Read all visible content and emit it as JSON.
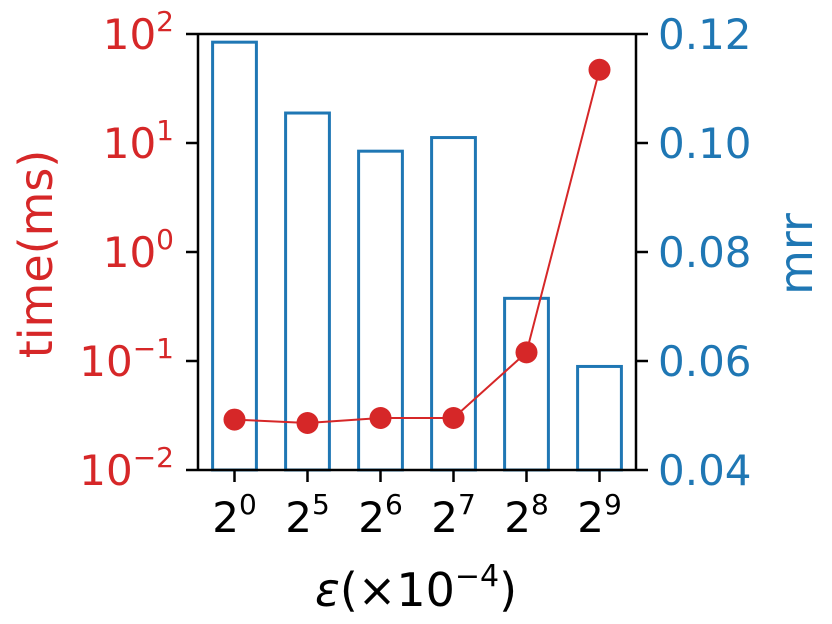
{
  "chart_data": {
    "type": "bar",
    "categories": [
      {
        "base": "2",
        "exp": "0"
      },
      {
        "base": "2",
        "exp": "5"
      },
      {
        "base": "2",
        "exp": "6"
      },
      {
        "base": "2",
        "exp": "7"
      },
      {
        "base": "2",
        "exp": "8"
      },
      {
        "base": "2",
        "exp": "9"
      }
    ],
    "series": [
      {
        "type": "line",
        "axis": "left",
        "values": [
          0.029,
          0.027,
          0.03,
          0.03,
          0.12,
          47.0
        ],
        "color": "#d62728"
      },
      {
        "type": "bar",
        "axis": "right",
        "values": [
          0.1185,
          0.1055,
          0.0985,
          0.101,
          0.0715,
          0.059
        ],
        "color": "#1f77b4",
        "fill": "none"
      }
    ],
    "xlabel": {
      "symbol": "ε",
      "open": "(×10",
      "exp": "−4",
      "close": ")"
    },
    "ylabel_left": "time(ms)",
    "ylabel_right": "mrr",
    "left_axis": {
      "scale": "log",
      "ylim": [
        0.01,
        100
      ],
      "ticks": [
        {
          "value": 0.01,
          "base": "10",
          "exp": "−2"
        },
        {
          "value": 0.1,
          "base": "10",
          "exp": "−1"
        },
        {
          "value": 1,
          "base": "10",
          "exp": "0"
        },
        {
          "value": 10,
          "base": "10",
          "exp": "1"
        },
        {
          "value": 100,
          "base": "10",
          "exp": "2"
        }
      ],
      "color": "#d62728"
    },
    "right_axis": {
      "scale": "linear",
      "ylim": [
        0.04,
        0.12
      ],
      "ticks": [
        {
          "value": 0.04,
          "label": "0.04"
        },
        {
          "value": 0.06,
          "label": "0.06"
        },
        {
          "value": 0.08,
          "label": "0.08"
        },
        {
          "value": 0.1,
          "label": "0.10"
        },
        {
          "value": 0.12,
          "label": "0.12"
        }
      ],
      "color": "#1f77b4"
    },
    "grid": false
  }
}
